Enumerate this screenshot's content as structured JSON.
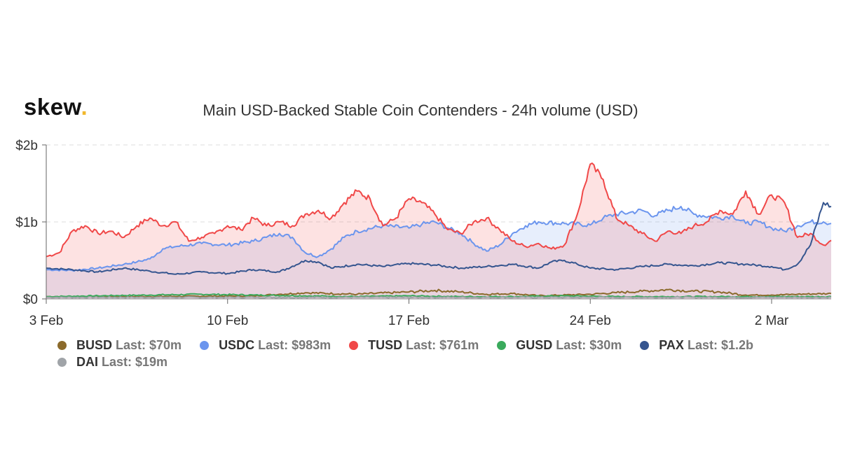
{
  "brand": {
    "name": "skew",
    "dot": ".",
    "dot_color": "#f1b82d"
  },
  "chart_data": {
    "type": "area",
    "title": "Main USD-Backed Stable Coin Contenders - 24h volume (USD)",
    "xlabel": "",
    "ylabel": "",
    "x_range": [
      0,
      30.3
    ],
    "x_ticks": [
      {
        "x": 0,
        "label": "3 Feb"
      },
      {
        "x": 7,
        "label": "10 Feb"
      },
      {
        "x": 14,
        "label": "17 Feb"
      },
      {
        "x": 21,
        "label": "24 Feb"
      },
      {
        "x": 28,
        "label": "2 Mar"
      }
    ],
    "ylim": [
      0,
      2
    ],
    "y_ticks": [
      {
        "y": 0,
        "label": "$0"
      },
      {
        "y": 1,
        "label": "$1b"
      },
      {
        "y": 2,
        "label": "$2b"
      }
    ],
    "grid": true,
    "legend_position": "bottom",
    "series": [
      {
        "name": "BUSD",
        "last_label": "Last: $70m",
        "color": "#8b6a2b",
        "fill": false,
        "points": [
          [
            0,
            0.03
          ],
          [
            4,
            0.03
          ],
          [
            8,
            0.04
          ],
          [
            9,
            0.06
          ],
          [
            10,
            0.08
          ],
          [
            12,
            0.06
          ],
          [
            14,
            0.09
          ],
          [
            15,
            0.11
          ],
          [
            16,
            0.09
          ],
          [
            17,
            0.06
          ],
          [
            18,
            0.07
          ],
          [
            19,
            0.04
          ],
          [
            21,
            0.06
          ],
          [
            22,
            0.08
          ],
          [
            23,
            0.1
          ],
          [
            24,
            0.12
          ],
          [
            25,
            0.1
          ],
          [
            26,
            0.09
          ],
          [
            27,
            0.05
          ],
          [
            28,
            0.05
          ],
          [
            29,
            0.06
          ],
          [
            30.3,
            0.07
          ]
        ]
      },
      {
        "name": "USDC",
        "last_label": "Last: $983m",
        "color": "#6b95ee",
        "fill": true,
        "points": [
          [
            0,
            0.38
          ],
          [
            1,
            0.37
          ],
          [
            2,
            0.4
          ],
          [
            3,
            0.45
          ],
          [
            3.5,
            0.48
          ],
          [
            4,
            0.52
          ],
          [
            4.5,
            0.65
          ],
          [
            5,
            0.68
          ],
          [
            6,
            0.72
          ],
          [
            7,
            0.7
          ],
          [
            8,
            0.75
          ],
          [
            8.5,
            0.8
          ],
          [
            9,
            0.85
          ],
          [
            9.5,
            0.8
          ],
          [
            10,
            0.6
          ],
          [
            10.5,
            0.55
          ],
          [
            11,
            0.65
          ],
          [
            11.5,
            0.8
          ],
          [
            12,
            0.88
          ],
          [
            13,
            0.95
          ],
          [
            14,
            0.92
          ],
          [
            14.5,
            0.97
          ],
          [
            15,
            1.0
          ],
          [
            15.5,
            0.92
          ],
          [
            16,
            0.85
          ],
          [
            16.5,
            0.72
          ],
          [
            17,
            0.62
          ],
          [
            17.5,
            0.7
          ],
          [
            18,
            0.85
          ],
          [
            18.5,
            0.95
          ],
          [
            19,
            1.0
          ],
          [
            20,
            0.98
          ],
          [
            21,
            0.96
          ],
          [
            21.5,
            1.05
          ],
          [
            22,
            1.1
          ],
          [
            22.5,
            1.12
          ],
          [
            23,
            1.15
          ],
          [
            23.5,
            1.08
          ],
          [
            24,
            1.15
          ],
          [
            24.5,
            1.2
          ],
          [
            25,
            1.1
          ],
          [
            26,
            1.05
          ],
          [
            26.5,
            1.08
          ],
          [
            27,
            0.98
          ],
          [
            27.5,
            1.0
          ],
          [
            28,
            0.92
          ],
          [
            28.5,
            0.88
          ],
          [
            29,
            0.95
          ],
          [
            29.5,
            1.0
          ],
          [
            30,
            1.0
          ],
          [
            30.3,
            0.98
          ]
        ]
      },
      {
        "name": "TUSD",
        "last_label": "Last: $761m",
        "color": "#f04848",
        "fill": true,
        "points": [
          [
            0,
            0.55
          ],
          [
            0.5,
            0.6
          ],
          [
            1,
            0.88
          ],
          [
            1.5,
            0.95
          ],
          [
            2,
            0.85
          ],
          [
            2.5,
            0.88
          ],
          [
            3,
            0.8
          ],
          [
            3.5,
            0.95
          ],
          [
            4,
            1.05
          ],
          [
            4.5,
            0.95
          ],
          [
            5,
            1.0
          ],
          [
            5.5,
            0.75
          ],
          [
            6,
            0.8
          ],
          [
            6.5,
            0.85
          ],
          [
            7,
            0.95
          ],
          [
            7.5,
            0.9
          ],
          [
            8,
            1.05
          ],
          [
            8.5,
            0.95
          ],
          [
            9,
            1.0
          ],
          [
            9.5,
            0.95
          ],
          [
            10,
            1.1
          ],
          [
            10.5,
            1.15
          ],
          [
            11,
            1.05
          ],
          [
            11.5,
            1.25
          ],
          [
            12,
            1.4
          ],
          [
            12.5,
            1.3
          ],
          [
            13,
            0.95
          ],
          [
            13.5,
            1.05
          ],
          [
            14,
            1.3
          ],
          [
            14.5,
            1.25
          ],
          [
            15,
            1.1
          ],
          [
            15.5,
            0.9
          ],
          [
            16,
            0.85
          ],
          [
            16.5,
            1.0
          ],
          [
            17,
            1.05
          ],
          [
            17.5,
            0.9
          ],
          [
            18,
            0.75
          ],
          [
            18.5,
            0.68
          ],
          [
            19,
            0.72
          ],
          [
            19.5,
            0.65
          ],
          [
            20,
            0.7
          ],
          [
            20.5,
            1.1
          ],
          [
            21,
            1.75
          ],
          [
            21.5,
            1.55
          ],
          [
            22,
            1.05
          ],
          [
            22.5,
            0.95
          ],
          [
            23,
            0.85
          ],
          [
            23.5,
            0.75
          ],
          [
            24,
            0.88
          ],
          [
            24.5,
            0.85
          ],
          [
            25,
            0.95
          ],
          [
            25.5,
            1.0
          ],
          [
            26,
            1.15
          ],
          [
            26.5,
            1.1
          ],
          [
            27,
            1.4
          ],
          [
            27.5,
            1.1
          ],
          [
            28,
            1.35
          ],
          [
            28.5,
            1.25
          ],
          [
            29,
            0.8
          ],
          [
            29.5,
            0.85
          ],
          [
            30,
            0.7
          ],
          [
            30.3,
            0.76
          ]
        ]
      },
      {
        "name": "GUSD",
        "last_label": "Last: $30m",
        "color": "#3aaa5c",
        "fill": false,
        "points": [
          [
            0,
            0.03
          ],
          [
            2,
            0.04
          ],
          [
            4,
            0.05
          ],
          [
            6,
            0.06
          ],
          [
            8,
            0.05
          ],
          [
            10,
            0.04
          ],
          [
            12,
            0.03
          ],
          [
            14,
            0.04
          ],
          [
            16,
            0.03
          ],
          [
            18,
            0.03
          ],
          [
            20,
            0.04
          ],
          [
            22,
            0.03
          ],
          [
            24,
            0.03
          ],
          [
            26,
            0.03
          ],
          [
            28,
            0.03
          ],
          [
            30.3,
            0.03
          ]
        ]
      },
      {
        "name": "PAX",
        "last_label": "Last: $1.2b",
        "color": "#35558f",
        "fill": false,
        "points": [
          [
            0,
            0.4
          ],
          [
            1,
            0.38
          ],
          [
            2,
            0.35
          ],
          [
            3,
            0.4
          ],
          [
            4,
            0.36
          ],
          [
            5,
            0.32
          ],
          [
            6,
            0.35
          ],
          [
            7,
            0.33
          ],
          [
            8,
            0.38
          ],
          [
            9,
            0.35
          ],
          [
            10,
            0.5
          ],
          [
            10.5,
            0.48
          ],
          [
            11,
            0.4
          ],
          [
            12,
            0.45
          ],
          [
            13,
            0.42
          ],
          [
            14,
            0.46
          ],
          [
            15,
            0.44
          ],
          [
            16,
            0.4
          ],
          [
            17,
            0.42
          ],
          [
            18,
            0.45
          ],
          [
            19,
            0.4
          ],
          [
            19.5,
            0.48
          ],
          [
            20,
            0.5
          ],
          [
            20.5,
            0.45
          ],
          [
            21,
            0.4
          ],
          [
            22,
            0.38
          ],
          [
            23,
            0.42
          ],
          [
            24,
            0.45
          ],
          [
            25,
            0.43
          ],
          [
            26,
            0.47
          ],
          [
            27,
            0.45
          ],
          [
            28,
            0.42
          ],
          [
            28.5,
            0.38
          ],
          [
            29,
            0.45
          ],
          [
            29.5,
            0.7
          ],
          [
            30,
            1.25
          ],
          [
            30.3,
            1.2
          ]
        ]
      },
      {
        "name": "DAI",
        "last_label": "Last: $19m",
        "color": "#a0a4a8",
        "fill": false,
        "points": [
          [
            0,
            0.02
          ],
          [
            4,
            0.02
          ],
          [
            8,
            0.02
          ],
          [
            12,
            0.02
          ],
          [
            16,
            0.02
          ],
          [
            20,
            0.02
          ],
          [
            24,
            0.02
          ],
          [
            28,
            0.02
          ],
          [
            30.3,
            0.02
          ]
        ]
      }
    ]
  }
}
